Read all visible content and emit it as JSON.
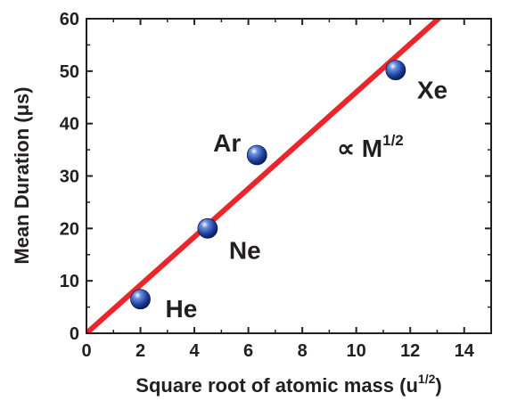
{
  "chart_data": {
    "type": "scatter",
    "xlabel": "Square root of atomic mass (u",
    "xlabel_sup": "1/2",
    "xlabel_close": ")",
    "ylabel": "Mean Duration (μs)",
    "xlim": [
      0,
      15
    ],
    "ylim": [
      0,
      60
    ],
    "xticks": [
      0,
      2,
      4,
      6,
      8,
      10,
      12,
      14
    ],
    "yticks": [
      0,
      10,
      20,
      30,
      40,
      50,
      60
    ],
    "grid": false,
    "points": [
      {
        "label": "He",
        "x": 2.0,
        "y": 6.5
      },
      {
        "label": "Ne",
        "x": 4.49,
        "y": 20.0
      },
      {
        "label": "Ar",
        "x": 6.32,
        "y": 34.0
      },
      {
        "label": "Xe",
        "x": 11.46,
        "y": 50.2
      }
    ],
    "fit_line": {
      "slope": 4.6,
      "intercept": 0,
      "color": "#e8262b"
    },
    "annotation": {
      "prefix": "∝ M",
      "sup": "1/2"
    },
    "colors": {
      "marker": "#1f3f9e",
      "axis": "#231f20"
    }
  }
}
